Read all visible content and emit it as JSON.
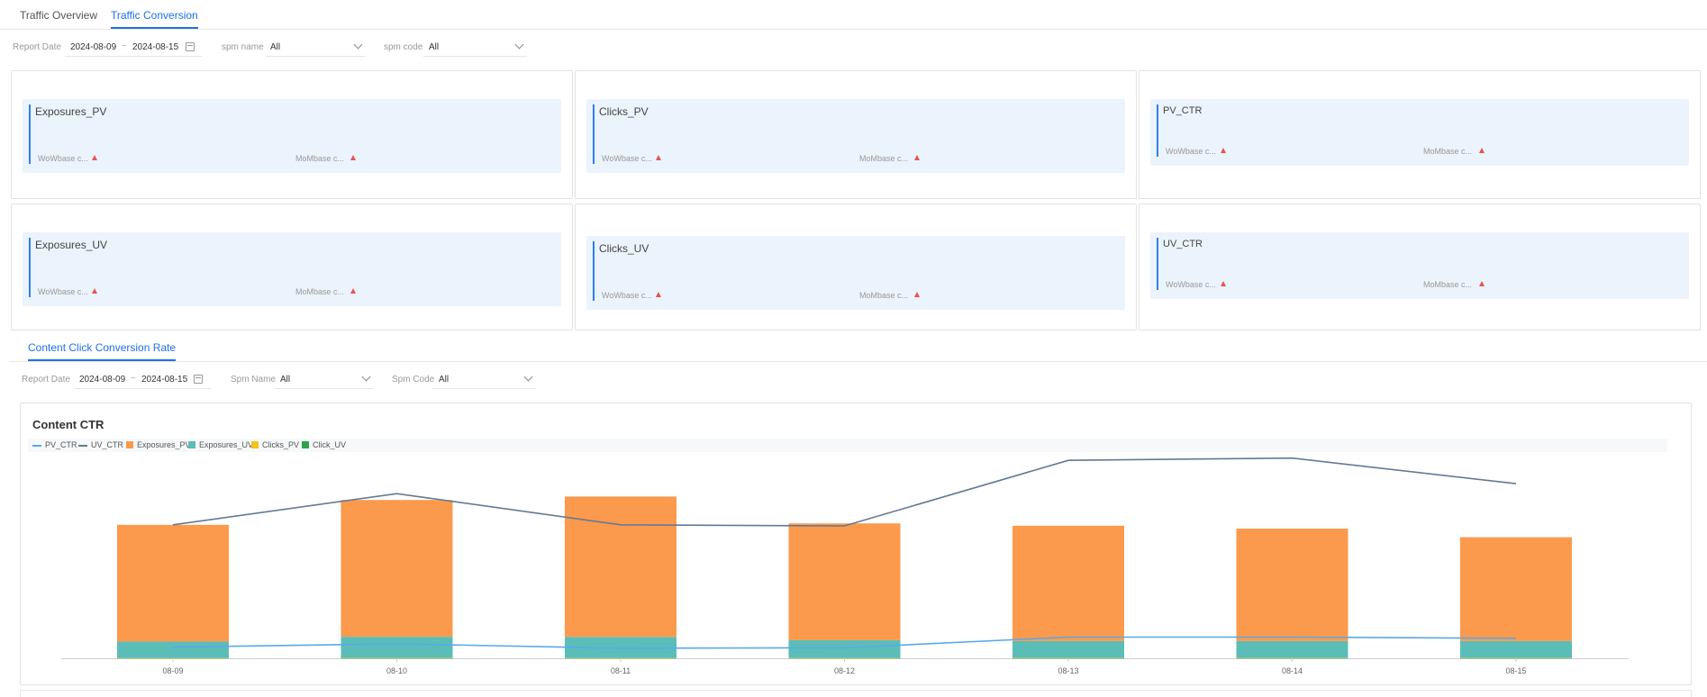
{
  "tabs": [
    {
      "label": "Traffic Overview",
      "active": false
    },
    {
      "label": "Traffic Conversion",
      "active": true
    }
  ],
  "filters_top": {
    "report_date_label": "Report Date",
    "date_start": "2024-08-09",
    "date_sep": "~",
    "date_end": "2024-08-15",
    "spm_name_label": "spm name",
    "spm_name_value": "All",
    "spm_code_label": "spm code",
    "spm_code_value": "All"
  },
  "metrics": [
    {
      "title": "Exposures_PV",
      "wow": "WoWbase c...",
      "mom": "MoMbase c..."
    },
    {
      "title": "Clicks_PV",
      "wow": "WoWbase c...",
      "mom": "MoMbase c..."
    },
    {
      "title": "PV_CTR",
      "wow": "WoWbase c...",
      "mom": "MoMbase c..."
    },
    {
      "title": "Exposures_UV",
      "wow": "WoWbase c...",
      "mom": "MoMbase c..."
    },
    {
      "title": "Clicks_UV",
      "wow": "WoWbase c...",
      "mom": "MoMbase c..."
    },
    {
      "title": "UV_CTR",
      "wow": "WoWbase c...",
      "mom": "MoMbase c..."
    }
  ],
  "section_tab": "Content Click Conversion Rate",
  "filters_bottom": {
    "report_date_label": "Report Date",
    "date_start": "2024-08-09",
    "date_sep": "~",
    "date_end": "2024-08-15",
    "spm_name_label": "Spm Name",
    "spm_name_value": "All",
    "spm_code_label": "Spm Code",
    "spm_code_value": "All"
  },
  "colors": {
    "accent": "#1f6feb",
    "up_arrow": "#e8544c",
    "exposures_pv": "#fb9a4d",
    "exposures_uv": "#5bbdb8",
    "clicks_pv": "#f5c31d",
    "click_uv": "#2ca44c",
    "pv_ctr": "#5aa9e6",
    "uv_ctr": "#627a93"
  },
  "chart_data": {
    "type": "bar",
    "title": "Content CTR",
    "legend_position": "top-left",
    "categories": [
      "08-09",
      "08-10",
      "08-11",
      "08-12",
      "08-13",
      "08-14",
      "08-15"
    ],
    "stacked": true,
    "series": [
      {
        "name": "PV_CTR",
        "kind": "line",
        "values": [
          0.1,
          0.13,
          0.09,
          0.095,
          0.19,
          0.19,
          0.18
        ]
      },
      {
        "name": "UV_CTR",
        "kind": "line",
        "values": [
          1.2,
          1.48,
          1.2,
          1.19,
          1.78,
          1.8,
          1.57
        ]
      },
      {
        "name": "Exposures_PV",
        "kind": "bar",
        "values": [
          1630,
          1910,
          1960,
          1630,
          1610,
          1570,
          1450
        ]
      },
      {
        "name": "Exposures_UV",
        "kind": "bar",
        "values": [
          230,
          295,
          295,
          250,
          235,
          235,
          235
        ]
      },
      {
        "name": "Clicks_PV",
        "kind": "bar",
        "values": [
          2,
          3,
          2,
          2,
          3,
          3,
          3
        ]
      },
      {
        "name": "Click_UV",
        "kind": "bar",
        "values": [
          1,
          2,
          1,
          1,
          2,
          2,
          2
        ]
      }
    ],
    "ylim": [
      0,
      2200
    ],
    "ylim_ctr": [
      0,
      2.0
    ],
    "grid": false
  }
}
